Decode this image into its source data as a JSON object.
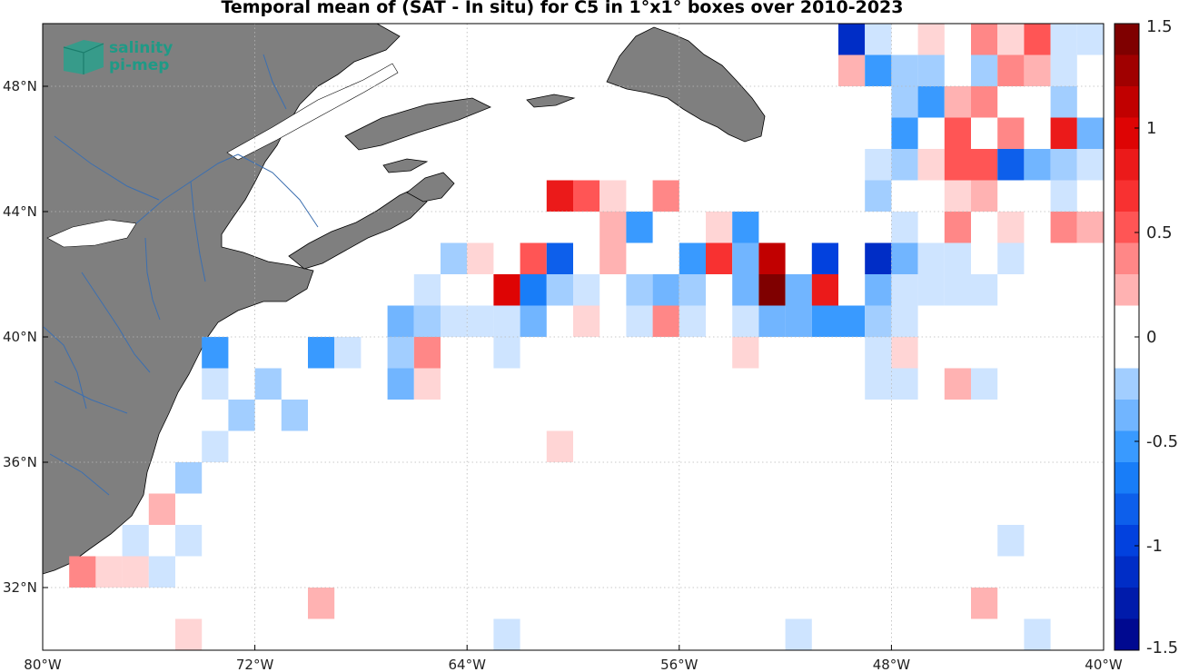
{
  "title": "Temporal mean of (SAT - In situ) for C5 in 1°x1° boxes over 2010-2023",
  "logo": {
    "line1": "salinity",
    "line2": "pi-mep"
  },
  "map": {
    "lon_range": [
      -80,
      -40
    ],
    "lat_range": [
      30,
      50
    ],
    "lon_ticks": [
      {
        "value": -80,
        "label": "80°W"
      },
      {
        "value": -72,
        "label": "72°W"
      },
      {
        "value": -64,
        "label": "64°W"
      },
      {
        "value": -56,
        "label": "56°W"
      },
      {
        "value": -48,
        "label": "48°W"
      },
      {
        "value": -40,
        "label": "40°W"
      }
    ],
    "lat_ticks": [
      {
        "value": 32,
        "label": "32°N"
      },
      {
        "value": 36,
        "label": "36°N"
      },
      {
        "value": 40,
        "label": "40°N"
      },
      {
        "value": 44,
        "label": "44°N"
      },
      {
        "value": 48,
        "label": "48°N"
      }
    ],
    "land_color": "#7f7f7f",
    "river_color": "#3c6fb0"
  },
  "colorbar": {
    "range": [
      -1.5,
      1.5
    ],
    "ticks": [
      {
        "value": 1.5,
        "label": "1.5"
      },
      {
        "value": 1,
        "label": "1"
      },
      {
        "value": 0.5,
        "label": "0.5"
      },
      {
        "value": 0,
        "label": "0"
      },
      {
        "value": -0.5,
        "label": "-0.5"
      },
      {
        "value": -1,
        "label": "-1"
      },
      {
        "value": -1.5,
        "label": "-1.5"
      }
    ]
  },
  "chart_data": {
    "type": "heatmap",
    "title": "Temporal mean of (SAT - In situ) for C5 in 1°x1° boxes over 2010-2023",
    "x_unit": "longitude (deg)",
    "y_unit": "latitude (deg)",
    "colorbar_range": [
      -1.5,
      1.5
    ],
    "cells": [
      {
        "lon": -49.5,
        "lat": 49.5,
        "value": -1.2
      },
      {
        "lon": -48.5,
        "lat": 49.5,
        "value": -0.1
      },
      {
        "lon": -46.5,
        "lat": 49.5,
        "value": 0.1
      },
      {
        "lon": -44.5,
        "lat": 49.5,
        "value": 0.35
      },
      {
        "lon": -43.5,
        "lat": 49.5,
        "value": 0.1
      },
      {
        "lon": -42.5,
        "lat": 49.5,
        "value": 0.45
      },
      {
        "lon": -41.5,
        "lat": 49.5,
        "value": -0.1
      },
      {
        "lon": -40.5,
        "lat": 49.5,
        "value": -0.1
      },
      {
        "lon": -49.5,
        "lat": 48.5,
        "value": 0.15
      },
      {
        "lon": -48.5,
        "lat": 48.5,
        "value": -0.55
      },
      {
        "lon": -47.5,
        "lat": 48.5,
        "value": -0.3
      },
      {
        "lon": -46.5,
        "lat": 48.5,
        "value": -0.25
      },
      {
        "lon": -44.5,
        "lat": 48.5,
        "value": -0.2
      },
      {
        "lon": -43.5,
        "lat": 48.5,
        "value": 0.3
      },
      {
        "lon": -42.5,
        "lat": 48.5,
        "value": 0.15
      },
      {
        "lon": -41.5,
        "lat": 48.5,
        "value": -0.1
      },
      {
        "lon": -47.5,
        "lat": 47.5,
        "value": -0.2
      },
      {
        "lon": -46.5,
        "lat": 47.5,
        "value": -0.55
      },
      {
        "lon": -45.5,
        "lat": 47.5,
        "value": 0.15
      },
      {
        "lon": -44.5,
        "lat": 47.5,
        "value": 0.3
      },
      {
        "lon": -41.5,
        "lat": 47.5,
        "value": -0.2
      },
      {
        "lon": -47.5,
        "lat": 46.5,
        "value": -0.6
      },
      {
        "lon": -45.5,
        "lat": 46.5,
        "value": 0.55
      },
      {
        "lon": -43.5,
        "lat": 46.5,
        "value": 0.3
      },
      {
        "lon": -41.5,
        "lat": 46.5,
        "value": 0.85
      },
      {
        "lon": -40.5,
        "lat": 46.5,
        "value": -0.45
      },
      {
        "lon": -48.5,
        "lat": 45.5,
        "value": -0.1
      },
      {
        "lon": -47.5,
        "lat": 45.5,
        "value": -0.3
      },
      {
        "lon": -46.5,
        "lat": 45.5,
        "value": 0.1
      },
      {
        "lon": -45.5,
        "lat": 45.5,
        "value": 0.5
      },
      {
        "lon": -44.5,
        "lat": 45.5,
        "value": 0.5
      },
      {
        "lon": -43.5,
        "lat": 45.5,
        "value": -0.85
      },
      {
        "lon": -42.5,
        "lat": 45.5,
        "value": -0.45
      },
      {
        "lon": -41.5,
        "lat": 45.5,
        "value": -0.3
      },
      {
        "lon": -40.5,
        "lat": 45.5,
        "value": -0.1
      },
      {
        "lon": -60.5,
        "lat": 44.5,
        "value": 0.8
      },
      {
        "lon": -59.5,
        "lat": 44.5,
        "value": 0.5
      },
      {
        "lon": -58.5,
        "lat": 44.5,
        "value": 0.1
      },
      {
        "lon": -56.5,
        "lat": 44.5,
        "value": 0.35
      },
      {
        "lon": -48.5,
        "lat": 44.5,
        "value": -0.3
      },
      {
        "lon": -45.5,
        "lat": 44.5,
        "value": 0.1
      },
      {
        "lon": -44.5,
        "lat": 44.5,
        "value": 0.25
      },
      {
        "lon": -41.5,
        "lat": 44.5,
        "value": -0.1
      },
      {
        "lon": -58.5,
        "lat": 43.5,
        "value": 0.15
      },
      {
        "lon": -57.5,
        "lat": 43.5,
        "value": -0.5
      },
      {
        "lon": -54.5,
        "lat": 43.5,
        "value": 0.1
      },
      {
        "lon": -53.5,
        "lat": 43.5,
        "value": -0.5
      },
      {
        "lon": -47.5,
        "lat": 43.5,
        "value": -0.1
      },
      {
        "lon": -45.5,
        "lat": 43.5,
        "value": 0.3
      },
      {
        "lon": -43.5,
        "lat": 43.5,
        "value": 0.1
      },
      {
        "lon": -41.5,
        "lat": 43.5,
        "value": 0.3
      },
      {
        "lon": -40.5,
        "lat": 43.5,
        "value": 0.2
      },
      {
        "lon": -64.5,
        "lat": 42.5,
        "value": -0.25
      },
      {
        "lon": -63.5,
        "lat": 42.5,
        "value": 0.1
      },
      {
        "lon": -61.5,
        "lat": 42.5,
        "value": 0.55
      },
      {
        "lon": -60.5,
        "lat": 42.5,
        "value": -0.85
      },
      {
        "lon": -58.5,
        "lat": 42.5,
        "value": 0.25
      },
      {
        "lon": -55.5,
        "lat": 42.5,
        "value": -0.55
      },
      {
        "lon": -54.5,
        "lat": 42.5,
        "value": 0.65
      },
      {
        "lon": -53.5,
        "lat": 42.5,
        "value": -0.45
      },
      {
        "lon": -52.5,
        "lat": 42.5,
        "value": 1.05
      },
      {
        "lon": -50.5,
        "lat": 42.5,
        "value": -1.05
      },
      {
        "lon": -48.5,
        "lat": 42.5,
        "value": -1.15
      },
      {
        "lon": -47.5,
        "lat": 42.5,
        "value": -0.45
      },
      {
        "lon": -46.5,
        "lat": 42.5,
        "value": -0.1
      },
      {
        "lon": -45.5,
        "lat": 42.5,
        "value": -0.1
      },
      {
        "lon": -43.5,
        "lat": 42.5,
        "value": -0.1
      },
      {
        "lon": -65.5,
        "lat": 41.5,
        "value": -0.1
      },
      {
        "lon": -62.5,
        "lat": 41.5,
        "value": 0.9
      },
      {
        "lon": -61.5,
        "lat": 41.5,
        "value": -0.7
      },
      {
        "lon": -60.5,
        "lat": 41.5,
        "value": -0.3
      },
      {
        "lon": -59.5,
        "lat": 41.5,
        "value": -0.1
      },
      {
        "lon": -57.5,
        "lat": 41.5,
        "value": -0.2
      },
      {
        "lon": -56.5,
        "lat": 41.5,
        "value": -0.35
      },
      {
        "lon": -55.5,
        "lat": 41.5,
        "value": -0.2
      },
      {
        "lon": -53.5,
        "lat": 41.5,
        "value": -0.45
      },
      {
        "lon": -52.5,
        "lat": 41.5,
        "value": 1.5
      },
      {
        "lon": -51.5,
        "lat": 41.5,
        "value": -0.35
      },
      {
        "lon": -50.5,
        "lat": 41.5,
        "value": 0.85
      },
      {
        "lon": -48.5,
        "lat": 41.5,
        "value": -0.35
      },
      {
        "lon": -47.5,
        "lat": 41.5,
        "value": -0.1
      },
      {
        "lon": -46.5,
        "lat": 41.5,
        "value": -0.1
      },
      {
        "lon": -45.5,
        "lat": 41.5,
        "value": -0.1
      },
      {
        "lon": -44.5,
        "lat": 41.5,
        "value": -0.1
      },
      {
        "lon": -66.5,
        "lat": 40.5,
        "value": -0.35
      },
      {
        "lon": -65.5,
        "lat": 40.5,
        "value": -0.25
      },
      {
        "lon": -64.5,
        "lat": 40.5,
        "value": -0.1
      },
      {
        "lon": -63.5,
        "lat": 40.5,
        "value": -0.1
      },
      {
        "lon": -62.5,
        "lat": 40.5,
        "value": -0.1
      },
      {
        "lon": -61.5,
        "lat": 40.5,
        "value": -0.35
      },
      {
        "lon": -59.5,
        "lat": 40.5,
        "value": 0.1
      },
      {
        "lon": -57.5,
        "lat": 40.5,
        "value": -0.1
      },
      {
        "lon": -56.5,
        "lat": 40.5,
        "value": 0.3
      },
      {
        "lon": -55.5,
        "lat": 40.5,
        "value": -0.1
      },
      {
        "lon": -53.5,
        "lat": 40.5,
        "value": -0.1
      },
      {
        "lon": -52.5,
        "lat": 40.5,
        "value": -0.35
      },
      {
        "lon": -51.5,
        "lat": 40.5,
        "value": -0.35
      },
      {
        "lon": -50.5,
        "lat": 40.5,
        "value": -0.5
      },
      {
        "lon": -49.5,
        "lat": 40.5,
        "value": -0.5
      },
      {
        "lon": -48.5,
        "lat": 40.5,
        "value": -0.3
      },
      {
        "lon": -47.5,
        "lat": 40.5,
        "value": -0.1
      },
      {
        "lon": -73.5,
        "lat": 39.5,
        "value": -0.6
      },
      {
        "lon": -69.5,
        "lat": 39.5,
        "value": -0.5
      },
      {
        "lon": -68.5,
        "lat": 39.5,
        "value": -0.1
      },
      {
        "lon": -66.5,
        "lat": 39.5,
        "value": -0.25
      },
      {
        "lon": -65.5,
        "lat": 39.5,
        "value": 0.3
      },
      {
        "lon": -62.5,
        "lat": 39.5,
        "value": -0.1
      },
      {
        "lon": -53.5,
        "lat": 39.5,
        "value": 0.1
      },
      {
        "lon": -48.5,
        "lat": 39.5,
        "value": -0.1
      },
      {
        "lon": -47.5,
        "lat": 39.5,
        "value": 0.1
      },
      {
        "lon": -73.5,
        "lat": 38.5,
        "value": -0.1
      },
      {
        "lon": -71.5,
        "lat": 38.5,
        "value": -0.2
      },
      {
        "lon": -66.5,
        "lat": 38.5,
        "value": -0.45
      },
      {
        "lon": -65.5,
        "lat": 38.5,
        "value": 0.1
      },
      {
        "lon": -48.5,
        "lat": 38.5,
        "value": -0.1
      },
      {
        "lon": -47.5,
        "lat": 38.5,
        "value": -0.1
      },
      {
        "lon": -45.5,
        "lat": 38.5,
        "value": 0.15
      },
      {
        "lon": -44.5,
        "lat": 38.5,
        "value": -0.1
      },
      {
        "lon": -72.5,
        "lat": 37.5,
        "value": -0.2
      },
      {
        "lon": -70.5,
        "lat": 37.5,
        "value": -0.2
      },
      {
        "lon": -73.5,
        "lat": 36.5,
        "value": -0.1
      },
      {
        "lon": -60.5,
        "lat": 36.5,
        "value": 0.1
      },
      {
        "lon": -74.5,
        "lat": 35.5,
        "value": -0.25
      },
      {
        "lon": -75.5,
        "lat": 34.5,
        "value": 0.15
      },
      {
        "lon": -76.5,
        "lat": 33.5,
        "value": -0.1
      },
      {
        "lon": -74.5,
        "lat": 33.5,
        "value": -0.1
      },
      {
        "lon": -43.5,
        "lat": 33.5,
        "value": -0.1
      },
      {
        "lon": -78.5,
        "lat": 32.5,
        "value": 0.3
      },
      {
        "lon": -77.5,
        "lat": 32.5,
        "value": 0.1
      },
      {
        "lon": -76.5,
        "lat": 32.5,
        "value": 0.1
      },
      {
        "lon": -75.5,
        "lat": 32.5,
        "value": -0.1
      },
      {
        "lon": -69.5,
        "lat": 31.5,
        "value": 0.15
      },
      {
        "lon": -44.5,
        "lat": 31.5,
        "value": 0.15
      },
      {
        "lon": -74.5,
        "lat": 30.5,
        "value": 0.1
      },
      {
        "lon": -62.5,
        "lat": 30.5,
        "value": -0.1
      },
      {
        "lon": -51.5,
        "lat": 30.5,
        "value": -0.1
      },
      {
        "lon": -42.5,
        "lat": 30.5,
        "value": -0.1
      }
    ]
  }
}
